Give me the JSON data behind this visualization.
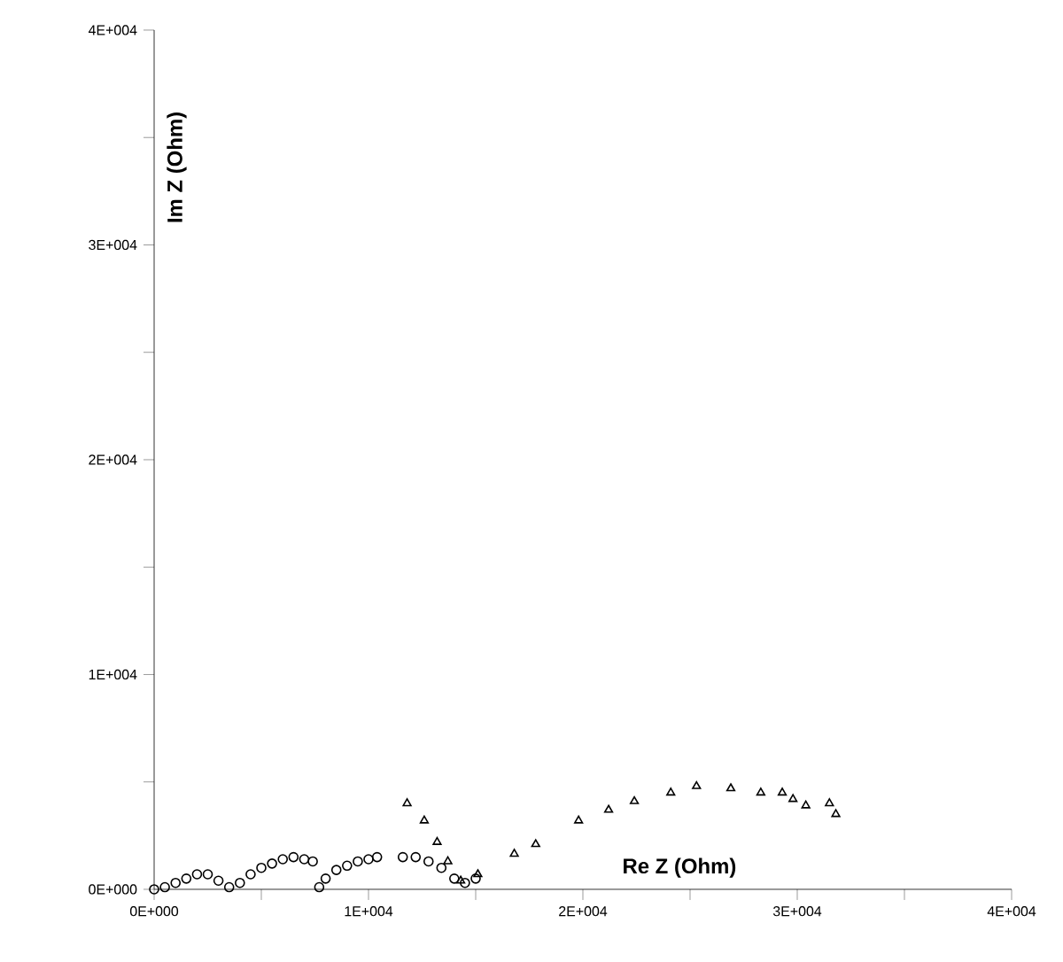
{
  "chart_data": {
    "type": "scatter",
    "xlabel": "Re Z (Ohm)",
    "ylabel": "Im Z (Ohm)",
    "xlim": [
      0,
      40000
    ],
    "ylim": [
      0,
      40000
    ],
    "xticks": [
      {
        "value": 0,
        "label": "0E+000"
      },
      {
        "value": 5000,
        "label": null
      },
      {
        "value": 10000,
        "label": "1E+004"
      },
      {
        "value": 15000,
        "label": null
      },
      {
        "value": 20000,
        "label": "2E+004"
      },
      {
        "value": 25000,
        "label": null
      },
      {
        "value": 30000,
        "label": "3E+004"
      },
      {
        "value": 35000,
        "label": null
      },
      {
        "value": 40000,
        "label": "4E+004"
      }
    ],
    "yticks": [
      {
        "value": 0,
        "label": "0E+000"
      },
      {
        "value": 5000,
        "label": null
      },
      {
        "value": 10000,
        "label": "1E+004"
      },
      {
        "value": 15000,
        "label": null
      },
      {
        "value": 20000,
        "label": "2E+004"
      },
      {
        "value": 25000,
        "label": null
      },
      {
        "value": 30000,
        "label": "3E+004"
      },
      {
        "value": 35000,
        "label": null
      },
      {
        "value": 40000,
        "label": "4E+004"
      }
    ],
    "grid": false,
    "series": [
      {
        "color": "#000000",
        "marker": "circle",
        "x": [
          0,
          500,
          1000,
          1500,
          2000,
          2500,
          3000,
          3500,
          4000,
          4500,
          5000,
          5500,
          6000,
          6500,
          7000,
          7400,
          7700,
          8000,
          8500,
          9000,
          9500,
          10000,
          10400,
          11600,
          12200,
          12800,
          13400,
          14000,
          14500,
          15000
        ],
        "values": [
          0,
          100,
          300,
          500,
          700,
          700,
          400,
          100,
          300,
          700,
          1000,
          1200,
          1400,
          1500,
          1400,
          1300,
          100,
          500,
          900,
          1100,
          1300,
          1400,
          1500,
          1500,
          1500,
          1300,
          1000,
          500,
          300,
          500
        ]
      },
      {
        "color": "#000000",
        "marker": "triangle",
        "x": [
          11800,
          12600,
          13200,
          13700,
          14300,
          15100,
          16800,
          17800,
          19800,
          21200,
          22400,
          24100,
          25300,
          26900,
          28300,
          29300,
          29800,
          30400,
          31500,
          31800
        ],
        "values": [
          4000,
          3200,
          2200,
          1300,
          400,
          700,
          1650,
          2100,
          3200,
          3700,
          4100,
          4500,
          4800,
          4700,
          4500,
          4500,
          4200,
          3900,
          4000,
          3500
        ]
      }
    ]
  }
}
